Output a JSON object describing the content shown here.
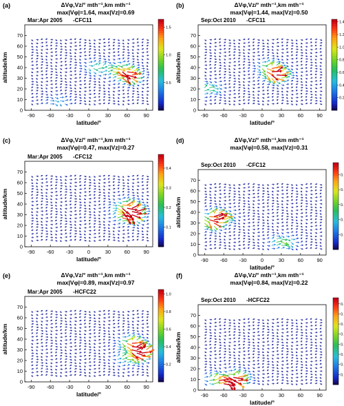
{
  "figure": {
    "panels": [
      {
        "letter": "(a)",
        "title": "ΔVφ,Vz/° mth⁻¹,km mth⁻¹",
        "stats": "max|Vφ|=1.64, max|Vz|=0.69",
        "period": "Mar:Apr 2005",
        "species": "-CFC11",
        "cbar_ticks": [
          "0.5",
          "1.0",
          "1.5"
        ],
        "cbar_max": 1.64
      },
      {
        "letter": "(b)",
        "title": "ΔVφ,Vz/° mth⁻¹,km mth⁻¹",
        "stats": "max|Vφ|=1.44, max|Vz|=0.50",
        "period": "Sep:Oct 2010",
        "species": "-CFC11",
        "cbar_ticks": [
          "0.2",
          "0.4",
          "0.6",
          "0.8",
          "1.0",
          "1.2",
          "1.4"
        ],
        "cbar_max": 1.44
      },
      {
        "letter": "(c)",
        "title": "ΔVφ,Vz/° mth⁻¹,km mth⁻¹",
        "stats": "max|Vφ|=0.47, max|Vz|=0.27",
        "period": "Mar:Apr 2005",
        "species": "-CFC12",
        "cbar_ticks": [
          "0.1",
          "0.2",
          "0.3",
          "0.4"
        ],
        "cbar_max": 0.47
      },
      {
        "letter": "(d)",
        "title": "ΔVφ,Vz/° mth⁻¹,km mth⁻¹",
        "stats": "max|Vφ|=0.58, max|Vz|=0.31",
        "period": "Sep:Oct 2010",
        "species": "-CFC12",
        "cbar_ticks": [
          "0.1",
          "0.2",
          "0.3",
          "0.4",
          "0.5"
        ],
        "cbar_max": 0.58
      },
      {
        "letter": "(e)",
        "title": "ΔVφ,Vz/° mth⁻¹,km mth⁻¹",
        "stats": "max|Vφ|=0.89, max|Vz|=0.97",
        "period": "Mar:Apr 2005",
        "species": "-HCFC22",
        "cbar_ticks": [
          "0.2",
          "0.4",
          "0.6",
          "0.8",
          "1.0"
        ],
        "cbar_max": 1.05
      },
      {
        "letter": "(f)",
        "title": "ΔVφ,Vz/° mth⁻¹,km mth⁻¹",
        "stats": "max|Vφ|=0.84, max|Vz|=0.22",
        "period": "Sep:Oct 2010",
        "species": "-HCFC22",
        "cbar_ticks": [
          "0.1",
          "0.2",
          "0.3",
          "0.4",
          "0.5",
          "0.6",
          "0.7",
          "0.8"
        ],
        "cbar_max": 0.86
      }
    ],
    "xlabel": "latitude/°",
    "ylabel": "altitude/km",
    "x_ticks": [
      "-90",
      "-60",
      "-30",
      "0",
      "30",
      "60",
      "90"
    ],
    "y_ticks": [
      "0",
      "10",
      "20",
      "30",
      "40",
      "50",
      "60",
      "70"
    ],
    "colors": {
      "low": "#1a1aa0",
      "mid": "#22c030",
      "high": "#ff2000"
    }
  },
  "chart_data": [
    {
      "type": "vector",
      "title": "ΔVφ,Vz/° mth⁻¹,km mth⁻¹",
      "xlabel": "latitude/°",
      "ylabel": "altitude/km",
      "xlim": [
        -100,
        100
      ],
      "ylim": [
        0,
        80
      ],
      "max_vphi": 1.64,
      "max_vz": 0.69,
      "period": "Mar:Apr 2005",
      "species": "CFC11",
      "highlights": [
        {
          "lat": 60,
          "alt": 32,
          "magnitude": 1.6
        },
        {
          "lat": 45,
          "alt": 38,
          "magnitude": 1.0
        },
        {
          "lat": 10,
          "alt": 40,
          "magnitude": 0.6
        },
        {
          "lat": -50,
          "alt": 8,
          "magnitude": 0.4
        }
      ]
    },
    {
      "type": "vector",
      "title": "ΔVφ,Vz/° mth⁻¹,km mth⁻¹",
      "xlabel": "latitude/°",
      "ylabel": "altitude/km",
      "xlim": [
        -100,
        100
      ],
      "ylim": [
        0,
        80
      ],
      "max_vphi": 1.44,
      "max_vz": 0.5,
      "period": "Sep:Oct 2010",
      "species": "CFC11",
      "highlights": [
        {
          "lat": 20,
          "alt": 33,
          "magnitude": 1.4
        },
        {
          "lat": 10,
          "alt": 40,
          "magnitude": 0.8
        },
        {
          "lat": -85,
          "alt": 20,
          "magnitude": 0.6
        }
      ]
    },
    {
      "type": "vector",
      "title": "ΔVφ,Vz/° mth⁻¹,km mth⁻¹",
      "xlabel": "latitude/°",
      "ylabel": "altitude/km",
      "xlim": [
        -100,
        100
      ],
      "ylim": [
        0,
        80
      ],
      "max_vphi": 0.47,
      "max_vz": 0.27,
      "period": "Mar:Apr 2005",
      "species": "CFC12",
      "highlights": [
        {
          "lat": 65,
          "alt": 33,
          "magnitude": 0.45
        },
        {
          "lat": 60,
          "alt": 28,
          "magnitude": 0.35
        },
        {
          "lat": 55,
          "alt": 38,
          "magnitude": 0.25
        }
      ]
    },
    {
      "type": "vector",
      "title": "ΔVφ,Vz/° mth⁻¹,km mth⁻¹",
      "xlabel": "latitude/°",
      "ylabel": "altitude/km",
      "xlim": [
        -100,
        100
      ],
      "ylim": [
        0,
        80
      ],
      "max_vphi": 0.58,
      "max_vz": 0.31,
      "period": "Sep:Oct 2010",
      "species": "CFC12",
      "highlights": [
        {
          "lat": -70,
          "alt": 36,
          "magnitude": 0.55
        },
        {
          "lat": -80,
          "alt": 30,
          "magnitude": 0.35
        },
        {
          "lat": 30,
          "alt": 12,
          "magnitude": 0.3
        }
      ]
    },
    {
      "type": "vector",
      "title": "ΔVφ,Vz/° mth⁻¹,km mth⁻¹",
      "xlabel": "latitude/°",
      "ylabel": "altitude/km",
      "xlim": [
        -100,
        100
      ],
      "ylim": [
        0,
        80
      ],
      "max_vphi": 0.89,
      "max_vz": 0.97,
      "period": "Mar:Apr 2005",
      "species": "HCFC22",
      "highlights": [
        {
          "lat": 80,
          "alt": 28,
          "magnitude": 1.0
        },
        {
          "lat": 65,
          "alt": 36,
          "magnitude": 0.7
        },
        {
          "lat": 60,
          "alt": 22,
          "magnitude": 0.4
        }
      ]
    },
    {
      "type": "vector",
      "title": "ΔVφ,Vz/° mth⁻¹,km mth⁻¹",
      "xlabel": "latitude/°",
      "ylabel": "altitude/km",
      "xlim": [
        -100,
        100
      ],
      "ylim": [
        0,
        80
      ],
      "max_vphi": 0.84,
      "max_vz": 0.22,
      "period": "Sep:Oct 2010",
      "species": "HCFC22",
      "highlights": [
        {
          "lat": -50,
          "alt": 7,
          "magnitude": 0.8
        },
        {
          "lat": -70,
          "alt": 10,
          "magnitude": 0.5
        },
        {
          "lat": -40,
          "alt": 12,
          "magnitude": 0.4
        }
      ]
    }
  ]
}
